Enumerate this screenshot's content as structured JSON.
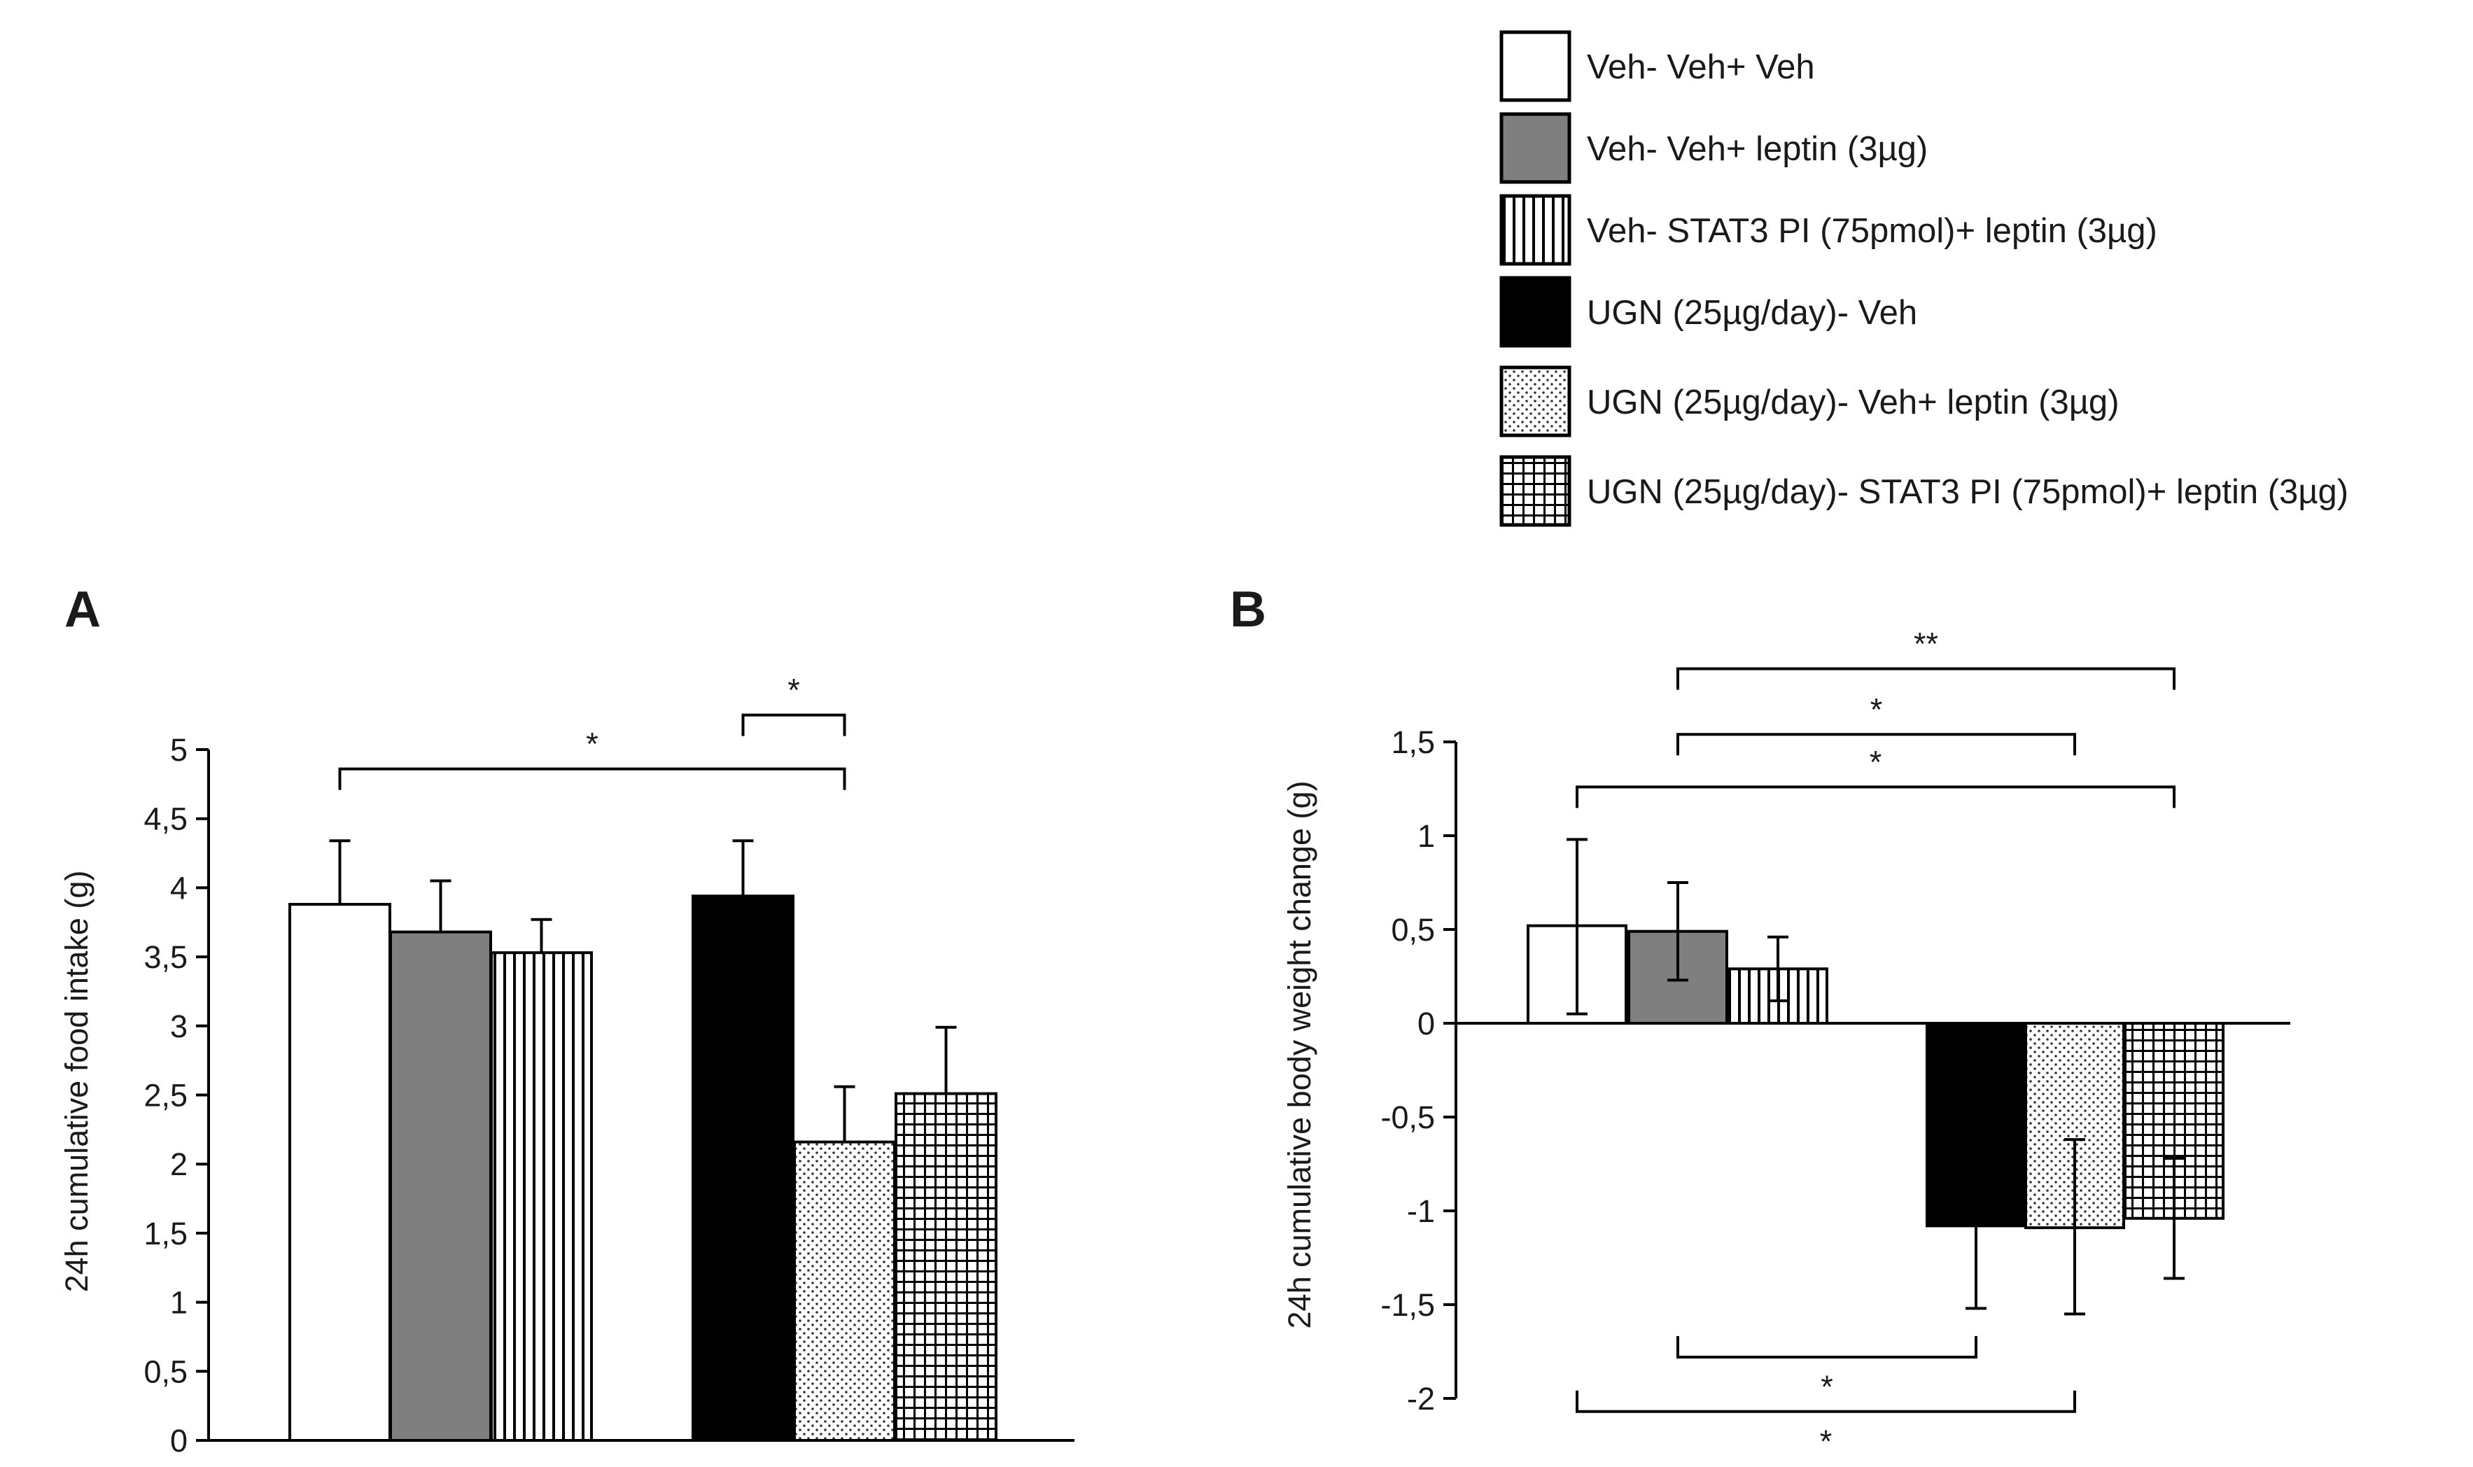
{
  "legend": [
    {
      "label": "Veh- Veh+ Veh",
      "pattern": "white"
    },
    {
      "label": "Veh- Veh+ leptin (3µg)",
      "pattern": "gray"
    },
    {
      "label": "Veh- STAT3 PI (75pmol)+ leptin (3µg)",
      "pattern": "vstripes"
    },
    {
      "label": "UGN (25µg/day)- Veh",
      "pattern": "black"
    },
    {
      "label": "UGN (25µg/day)- Veh+ leptin (3µg)",
      "pattern": "dots"
    },
    {
      "label": "UGN (25µg/day)- STAT3 PI (75pmol)+ leptin (3µg)",
      "pattern": "grid"
    }
  ],
  "colors": {
    "gray_fill": "#7f7f7f",
    "black_fill": "#000000",
    "axis": "#000000"
  },
  "chart_data": [
    {
      "type": "bar",
      "panel_label": "A",
      "ylabel": "24h cumulative food intake (g)",
      "xlabel": "",
      "ylim": [
        0,
        5
      ],
      "yticks": [
        0,
        0.5,
        1,
        1.5,
        2,
        2.5,
        3,
        3.5,
        4,
        4.5,
        5
      ],
      "ytick_labels": [
        "0",
        "0,5",
        "1",
        "1,5",
        "2",
        "2,5",
        "3",
        "3,5",
        "4",
        "4,5",
        "5"
      ],
      "series": [
        {
          "name": "Veh- Veh+ Veh",
          "value": 3.88,
          "error_upper": 4.34,
          "error_lower": null
        },
        {
          "name": "Veh- Veh+ leptin (3µg)",
          "value": 3.68,
          "error_upper": 4.05,
          "error_lower": null
        },
        {
          "name": "Veh- STAT3 PI (75pmol)+ leptin (3µg)",
          "value": 3.53,
          "error_upper": 3.77,
          "error_lower": null
        },
        {
          "name": "UGN (25µg/day)- Veh",
          "value": 3.94,
          "error_upper": 4.34,
          "error_lower": null
        },
        {
          "name": "UGN (25µg/day)- Veh+ leptin (3µg)",
          "value": 2.16,
          "error_upper": 2.56,
          "error_lower": null
        },
        {
          "name": "UGN (25µg/day)- STAT3 PI (75pmol)+ leptin (3µg)",
          "value": 2.51,
          "error_upper": 2.99,
          "error_lower": null
        }
      ],
      "significance": [
        {
          "from": 0,
          "to": 4,
          "label": "*",
          "y": 4.86,
          "side": "above"
        },
        {
          "from": 3,
          "to": 4,
          "label": "*",
          "y": 5.25,
          "side": "above"
        }
      ]
    },
    {
      "type": "bar",
      "panel_label": "B",
      "ylabel": "24h cumulative body weight change (g)",
      "xlabel": "",
      "ylim": [
        -2,
        1.5
      ],
      "yticks": [
        -2,
        -1.5,
        -1,
        -0.5,
        0,
        0.5,
        1,
        1.5
      ],
      "ytick_labels": [
        "-2",
        "-1,5",
        "-1",
        "-0,5",
        "0",
        "0,5",
        "1",
        "1,5"
      ],
      "series": [
        {
          "name": "Veh- Veh+ Veh",
          "value": 0.52,
          "error_upper": 0.98,
          "error_lower": 0.05
        },
        {
          "name": "Veh- Veh+ leptin (3µg)",
          "value": 0.49,
          "error_upper": 0.75,
          "error_lower": 0.23
        },
        {
          "name": "Veh- STAT3 PI (75pmol)+ leptin (3µg)",
          "value": 0.29,
          "error_upper": 0.46,
          "error_lower": 0.12
        },
        {
          "name": "UGN (25µg/day)- Veh",
          "value": -1.08,
          "error_upper": null,
          "error_lower": -1.52
        },
        {
          "name": "UGN (25µg/day)- Veh+ leptin (3µg)",
          "value": -1.09,
          "error_upper": -0.62,
          "error_lower": -1.55
        },
        {
          "name": "UGN (25µg/day)- STAT3 PI (75pmol)+ leptin (3µg)",
          "value": -1.04,
          "error_upper": -0.72,
          "error_lower": -1.36
        }
      ],
      "significance": [
        {
          "from": 0,
          "to": 5,
          "label": "*",
          "y": 1.26,
          "side": "above"
        },
        {
          "from": 1,
          "to": 4,
          "label": "*",
          "y": 1.54,
          "side": "above"
        },
        {
          "from": 1,
          "to": 5,
          "label": "**",
          "y": 1.89,
          "side": "above"
        },
        {
          "from": 1,
          "to": 3,
          "label": "*",
          "y": -1.78,
          "side": "below"
        },
        {
          "from": 0,
          "to": 4,
          "label": "*",
          "y": -2.07,
          "side": "below"
        }
      ]
    }
  ]
}
